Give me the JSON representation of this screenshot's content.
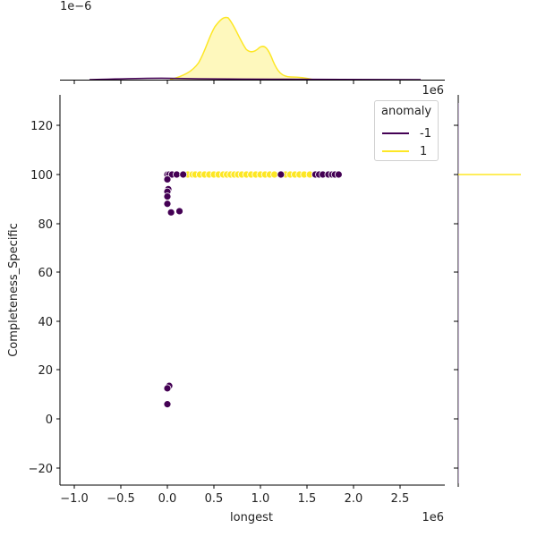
{
  "chart_data": {
    "type": "scatter",
    "subtype": "seaborn jointplot (scatter + marginal KDE)",
    "xlabel": "longest",
    "ylabel": "Completeness_Specific",
    "x_offset_label": "1e6",
    "top_marginal_offset_label": "1e−6",
    "right_marginal_offset_label": "1e6",
    "x_ticks": [
      "−1.0",
      "−0.5",
      "0.0",
      "0.5",
      "1.0",
      "1.5",
      "2.0",
      "2.5"
    ],
    "y_ticks": [
      "−20",
      "0",
      "20",
      "40",
      "60",
      "80",
      "100",
      "120"
    ],
    "xlim": [
      -1.15,
      2.98
    ],
    "ylim": [
      -27,
      133
    ],
    "grid": false,
    "legend": {
      "title": "anomaly",
      "position": "upper right",
      "entries": [
        {
          "label": "-1",
          "color": "#440154"
        },
        {
          "label": "1",
          "color": "#fde725"
        }
      ]
    },
    "series": [
      {
        "name": "-1",
        "color": "#440154",
        "points": [
          [
            0.0,
            100
          ],
          [
            0.02,
            100
          ],
          [
            0.05,
            100
          ],
          [
            0.1,
            100
          ],
          [
            0.17,
            100
          ],
          [
            0.0,
            98
          ],
          [
            0.01,
            94
          ],
          [
            0.0,
            93
          ],
          [
            0.0,
            91
          ],
          [
            0.0,
            88
          ],
          [
            0.04,
            84.5
          ],
          [
            0.13,
            85
          ],
          [
            0.02,
            13.5
          ],
          [
            0.0,
            12.5
          ],
          [
            0.0,
            6
          ],
          [
            1.22,
            100
          ],
          [
            1.59,
            100
          ],
          [
            1.63,
            100
          ],
          [
            1.67,
            100
          ],
          [
            1.73,
            100
          ],
          [
            1.77,
            100
          ],
          [
            1.8,
            100
          ],
          [
            1.84,
            100
          ]
        ]
      },
      {
        "name": "1",
        "color": "#fde725",
        "points": [
          [
            0.22,
            100
          ],
          [
            0.27,
            100
          ],
          [
            0.3,
            100
          ],
          [
            0.35,
            100
          ],
          [
            0.4,
            100
          ],
          [
            0.45,
            100
          ],
          [
            0.5,
            100
          ],
          [
            0.55,
            100
          ],
          [
            0.6,
            100
          ],
          [
            0.64,
            100
          ],
          [
            0.68,
            100
          ],
          [
            0.72,
            100
          ],
          [
            0.76,
            100
          ],
          [
            0.8,
            100
          ],
          [
            0.85,
            100
          ],
          [
            0.9,
            100
          ],
          [
            0.95,
            100
          ],
          [
            1.0,
            100
          ],
          [
            1.05,
            100
          ],
          [
            1.1,
            100
          ],
          [
            1.15,
            100
          ],
          [
            1.27,
            100
          ],
          [
            1.32,
            100
          ],
          [
            1.37,
            100
          ],
          [
            1.42,
            100
          ],
          [
            1.47,
            100
          ],
          [
            1.53,
            100
          ]
        ]
      }
    ],
    "marginal_x_kde": {
      "1": {
        "peak_x": 0.64,
        "secondary_peak_x": 1.07,
        "range": [
          0.0,
          1.7
        ]
      },
      "-1": {
        "shape": "flat, near zero",
        "range": [
          -0.8,
          2.8
        ]
      }
    },
    "marginal_y_kde": {
      "1": {
        "spike_at_y": 100
      },
      "-1": {
        "shape": "flat, near zero"
      }
    }
  }
}
